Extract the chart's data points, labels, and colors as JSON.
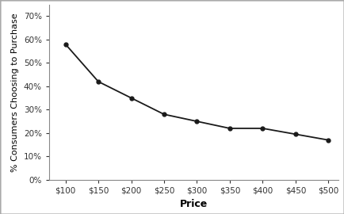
{
  "x": [
    100,
    150,
    200,
    250,
    300,
    350,
    400,
    450,
    500
  ],
  "y": [
    0.58,
    0.42,
    0.35,
    0.28,
    0.25,
    0.22,
    0.22,
    0.195,
    0.17
  ],
  "xlabel": "Price",
  "ylabel": "% Consumers Choosing to Purchase",
  "xlim": [
    75,
    515
  ],
  "ylim": [
    0,
    0.75
  ],
  "yticks": [
    0.0,
    0.1,
    0.2,
    0.3,
    0.4,
    0.5,
    0.6,
    0.7
  ],
  "xtick_labels": [
    "$100",
    "$150",
    "$200",
    "$250",
    "$300",
    "$350",
    "$400",
    "$450",
    "$500"
  ],
  "xtick_positions": [
    100,
    150,
    200,
    250,
    300,
    350,
    400,
    450,
    500
  ],
  "line_color": "#1a1a1a",
  "marker": "o",
  "marker_size": 3.5,
  "marker_facecolor": "#1a1a1a",
  "linewidth": 1.3,
  "background_color": "#ffffff",
  "xlabel_fontsize": 9,
  "ylabel_fontsize": 8,
  "tick_fontsize": 7.5
}
